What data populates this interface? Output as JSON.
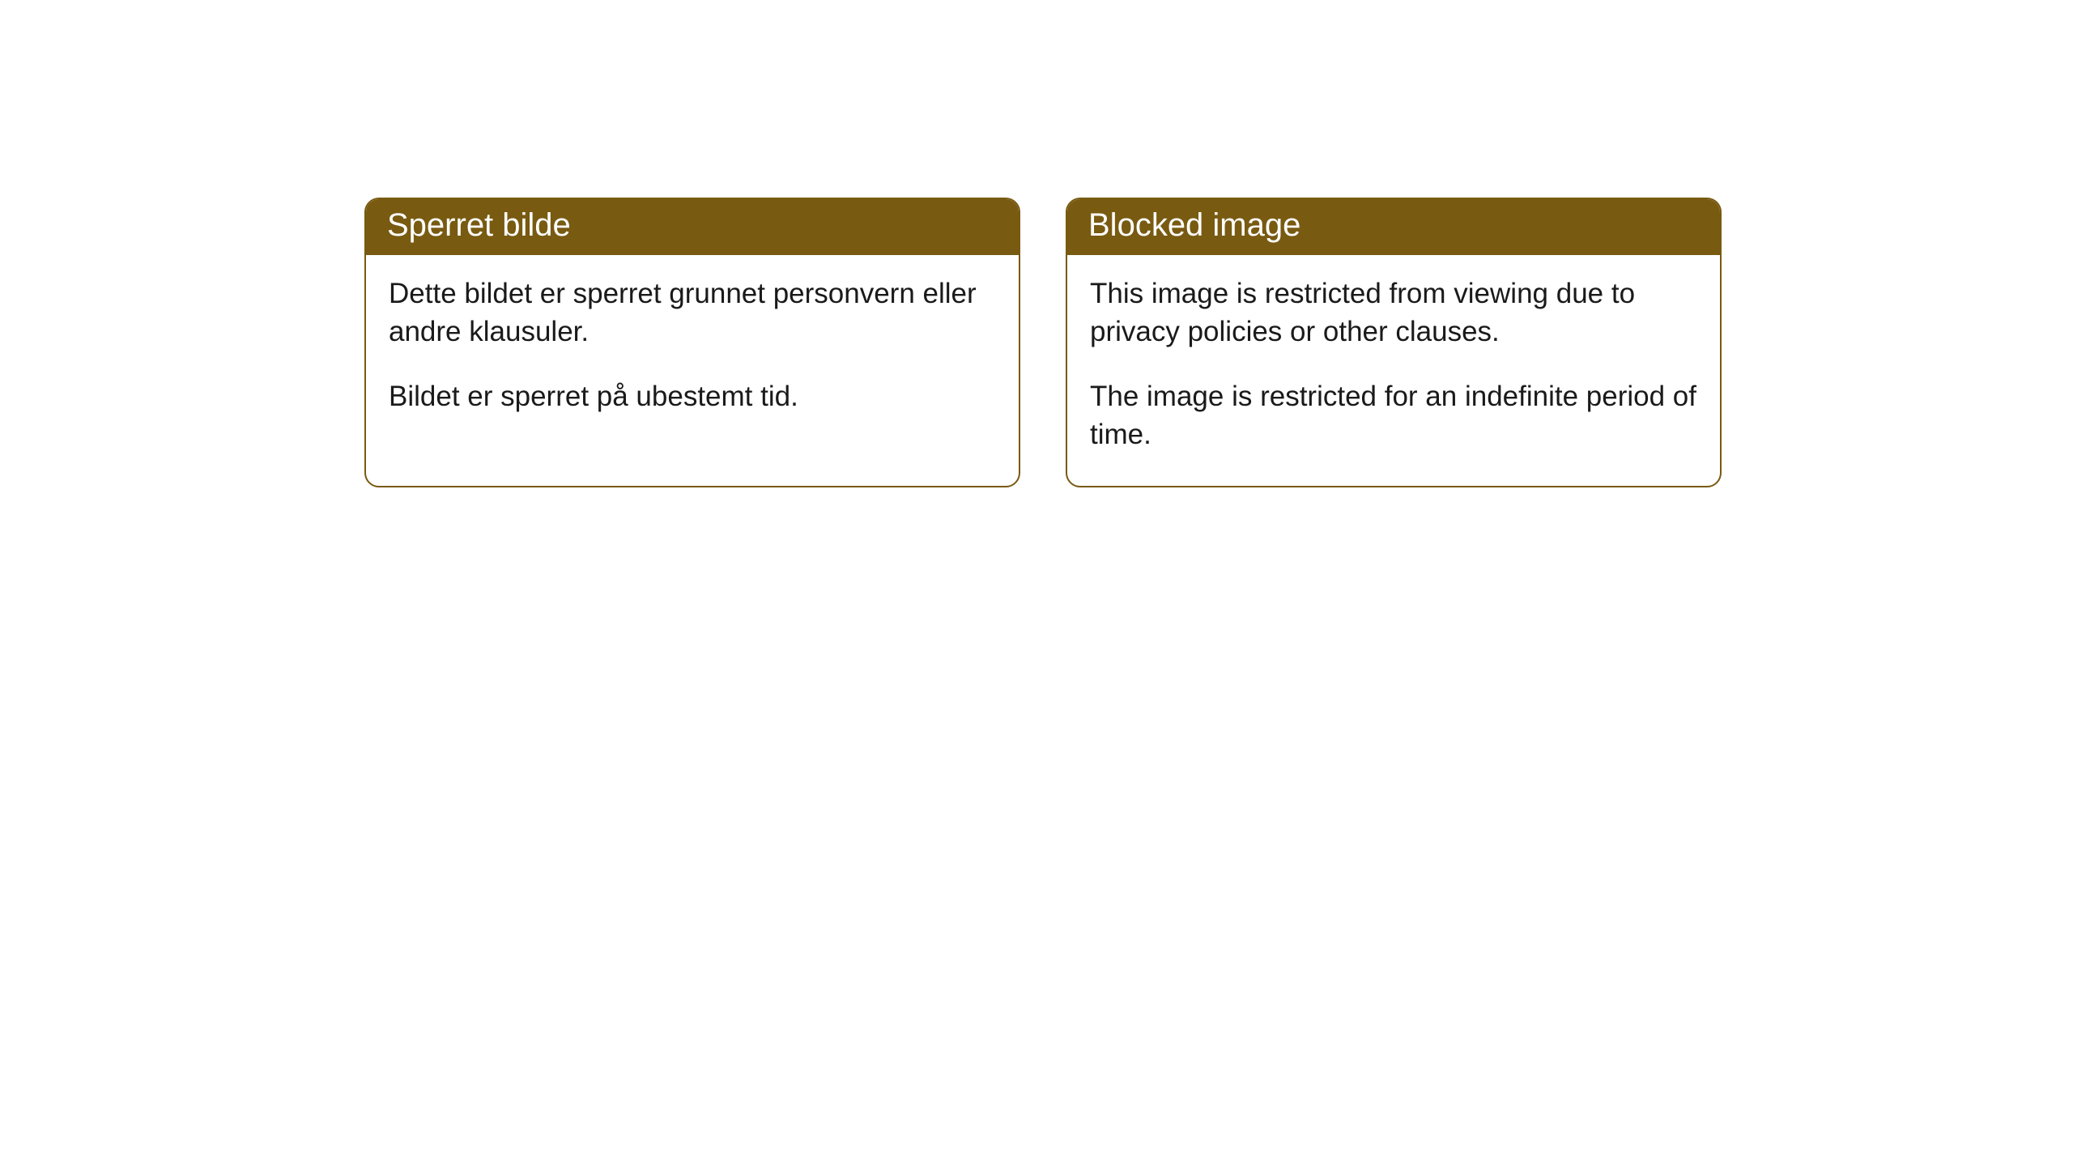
{
  "cards": [
    {
      "header": "Sperret bilde",
      "paragraph1": "Dette bildet er sperret grunnet personvern eller andre klausuler.",
      "paragraph2": "Bildet er sperret på ubestemt tid."
    },
    {
      "header": "Blocked image",
      "paragraph1": "This image is restricted from viewing due to privacy policies or other clauses.",
      "paragraph2": "The image is restricted for an indefinite period of time."
    }
  ],
  "styling": {
    "header_background": "#785a11",
    "header_text_color": "#ffffff",
    "border_color": "#785a11",
    "body_background": "#ffffff",
    "body_text_color": "#1a1a1a",
    "border_radius": 18,
    "header_fontsize": 40,
    "body_fontsize": 35
  }
}
